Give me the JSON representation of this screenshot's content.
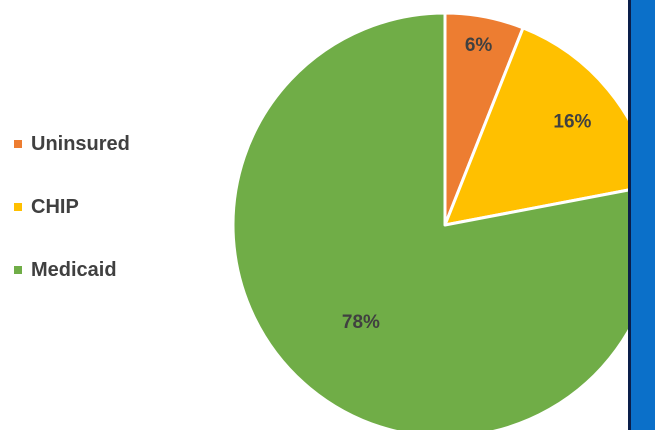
{
  "chart_data": {
    "type": "pie",
    "title": "",
    "slices": [
      {
        "label": "Uninsured",
        "value": 6,
        "display": "6%",
        "color": "#ed7d31"
      },
      {
        "label": "CHIP",
        "value": 16,
        "display": "16%",
        "color": "#ffc000"
      },
      {
        "label": "Medicaid",
        "value": 78,
        "display": "78%",
        "color": "#70ad47"
      }
    ],
    "legend": {
      "position": "left",
      "entries": [
        "Uninsured",
        "CHIP",
        "Medicaid"
      ]
    },
    "start_angle_deg": 0,
    "direction": "clockwise"
  },
  "colors": {
    "side_panel": "#0b70c9",
    "side_panel_border": "#0a1e4a",
    "label_text": "#404040"
  }
}
